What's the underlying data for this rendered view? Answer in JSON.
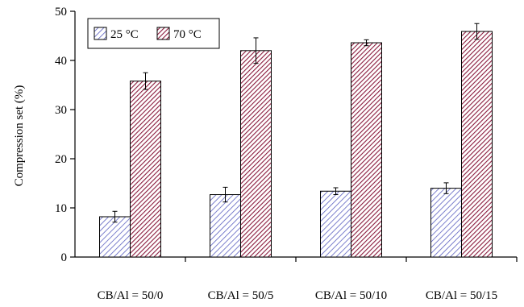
{
  "chart_data": {
    "type": "bar",
    "title": "",
    "xlabel": "",
    "ylabel": "Compression set (%)",
    "ylim": [
      0,
      50
    ],
    "yticks": [
      0,
      10,
      20,
      30,
      40,
      50
    ],
    "grid": false,
    "legend_position": "top-left",
    "categories": [
      "CB/Al = 50/0",
      "CB/Al = 50/5",
      "CB/Al = 50/10",
      "CB/Al = 50/15"
    ],
    "series": [
      {
        "name": "25 °C",
        "values": [
          8.2,
          12.7,
          13.4,
          14.0
        ],
        "error": [
          1.1,
          1.5,
          0.7,
          1.1
        ],
        "color": "#4a4fa8",
        "pattern": "diagonal-hatch-light"
      },
      {
        "name": "70 °C",
        "values": [
          35.8,
          42.0,
          43.6,
          45.9
        ],
        "error": [
          1.7,
          2.6,
          0.6,
          1.6
        ],
        "color": "#8a1a3c",
        "pattern": "diagonal-hatch-dense"
      }
    ]
  }
}
